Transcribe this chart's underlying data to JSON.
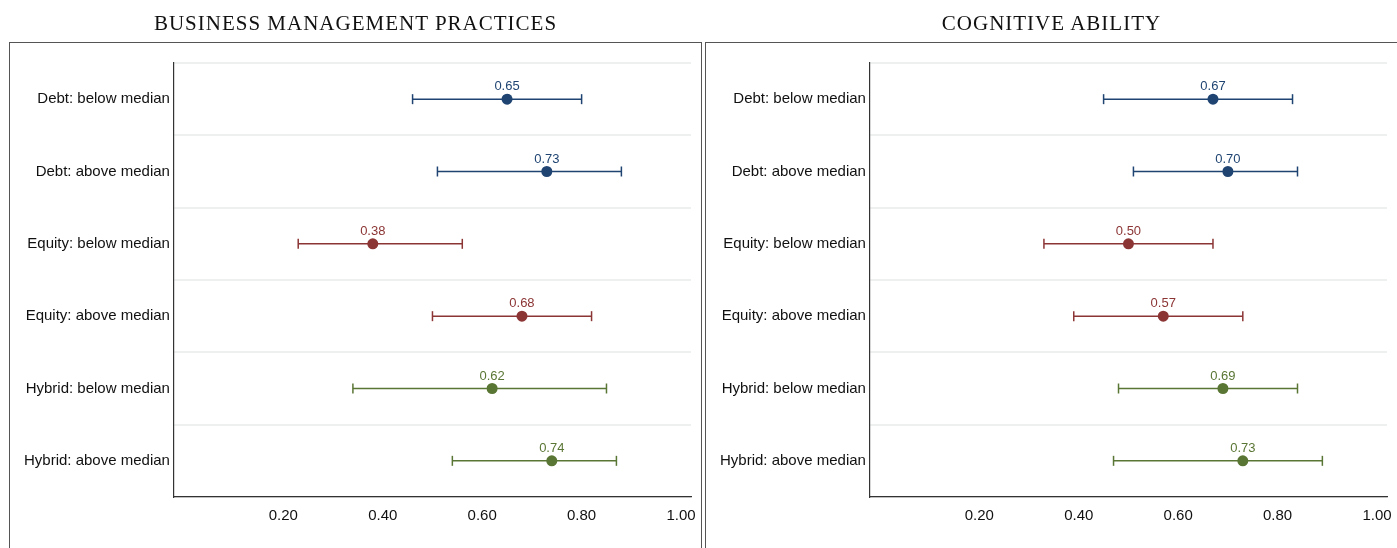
{
  "chart_data": [
    {
      "type": "scatter",
      "orientation": "horizontal",
      "title": "BUSINESS MANAGEMENT PRACTICES",
      "categories": [
        "Debt: below median",
        "Debt: above median",
        "Equity: below median",
        "Equity: above median",
        "Hybrid: below median",
        "Hybrid: above median"
      ],
      "values": [
        0.65,
        0.73,
        0.38,
        0.68,
        0.62,
        0.74
      ],
      "value_labels": [
        "0.65",
        "0.73",
        "0.38",
        "0.68",
        "0.62",
        "0.74"
      ],
      "colors": [
        "#1f4472",
        "#1f4472",
        "#8c3535",
        "#8c3535",
        "#5a7634",
        "#5a7634"
      ],
      "errors": [
        [
          0.46,
          0.8
        ],
        [
          0.51,
          0.88
        ],
        [
          0.23,
          0.56
        ],
        [
          0.5,
          0.82
        ],
        [
          0.34,
          0.85
        ],
        [
          0.54,
          0.87
        ]
      ],
      "data_labels": true,
      "marker": "circle",
      "grid": "y",
      "xlim": [
        -0.02,
        1.02
      ],
      "xticks": [
        {
          "value": 0.2,
          "label": "0.20"
        },
        {
          "value": 0.4,
          "label": "0.40"
        },
        {
          "value": 0.6,
          "label": "0.60"
        },
        {
          "value": 0.8,
          "label": "0.80"
        },
        {
          "value": 1.0,
          "label": "1.00"
        }
      ]
    },
    {
      "type": "scatter",
      "orientation": "horizontal",
      "title": "COGNITIVE ABILITY",
      "categories": [
        "Debt: below median",
        "Debt: above median",
        "Equity: below median",
        "Equity: above median",
        "Hybrid: below median",
        "Hybrid: above median"
      ],
      "values": [
        0.67,
        0.7,
        0.5,
        0.57,
        0.69,
        0.73
      ],
      "value_labels": [
        "0.67",
        "0.70",
        "0.50",
        "0.57",
        "0.69",
        "0.73"
      ],
      "colors": [
        "#1f4472",
        "#1f4472",
        "#8c3535",
        "#8c3535",
        "#5a7634",
        "#5a7634"
      ],
      "errors": [
        [
          0.45,
          0.83
        ],
        [
          0.51,
          0.84
        ],
        [
          0.33,
          0.67
        ],
        [
          0.39,
          0.73
        ],
        [
          0.48,
          0.84
        ],
        [
          0.47,
          0.89
        ]
      ],
      "data_labels": true,
      "marker": "circle",
      "grid": "y",
      "xlim": [
        -0.02,
        1.02
      ],
      "xticks": [
        {
          "value": 0.2,
          "label": "0.20"
        },
        {
          "value": 0.4,
          "label": "0.40"
        },
        {
          "value": 0.6,
          "label": "0.60"
        },
        {
          "value": 0.8,
          "label": "0.80"
        },
        {
          "value": 1.0,
          "label": "1.00"
        }
      ]
    }
  ]
}
